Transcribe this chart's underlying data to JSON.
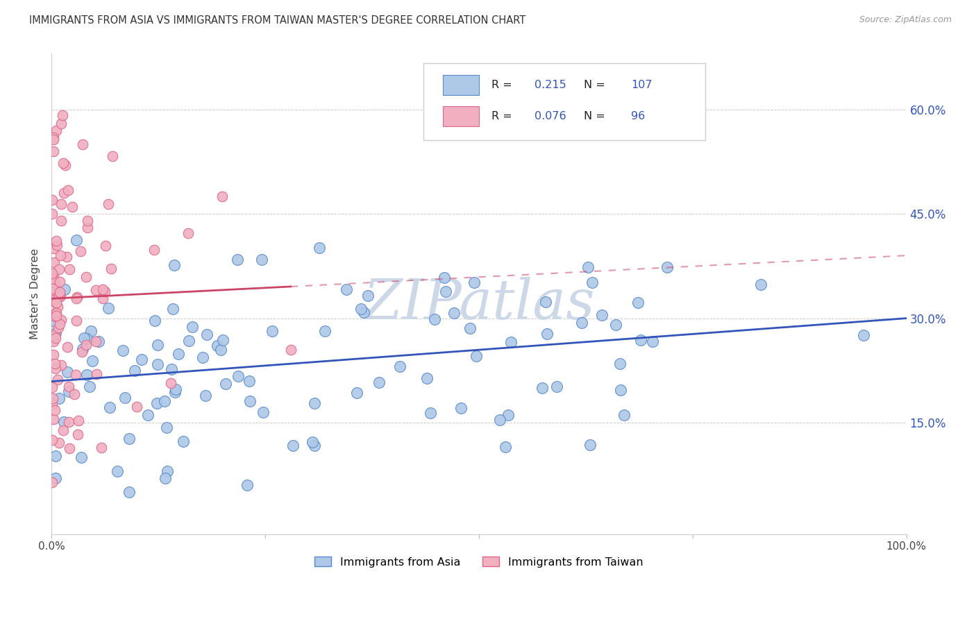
{
  "title": "IMMIGRANTS FROM ASIA VS IMMIGRANTS FROM TAIWAN MASTER'S DEGREE CORRELATION CHART",
  "source": "Source: ZipAtlas.com",
  "ylabel": "Master's Degree",
  "xlim": [
    0.0,
    1.0
  ],
  "ylim": [
    -0.01,
    0.68
  ],
  "ytick_positions": [
    0.15,
    0.3,
    0.45,
    0.6
  ],
  "blue_color": "#aec8e8",
  "blue_edge_color": "#5588cc",
  "pink_color": "#f0b0c0",
  "pink_edge_color": "#dd6688",
  "trend_blue": "#3355bb",
  "trend_pink": "#cc4466",
  "legend_R_blue": "0.215",
  "legend_N_blue": "107",
  "legend_R_pink": "0.076",
  "legend_N_pink": "96",
  "watermark": "ZIPatlas",
  "watermark_color": "#ccd8e8",
  "right_tick_color": "#3355bb",
  "grid_color": "#cccccc",
  "figsize": [
    14.06,
    8.92
  ],
  "dpi": 100
}
